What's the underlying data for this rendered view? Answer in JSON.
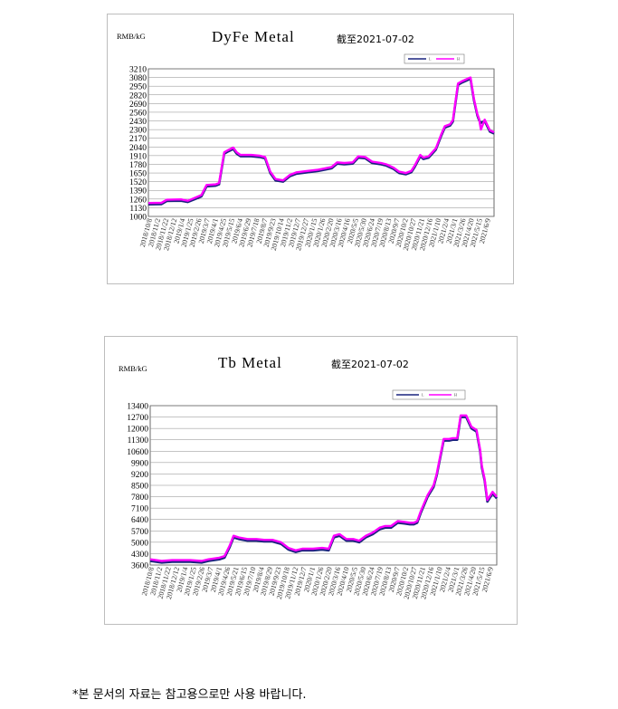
{
  "footer": {
    "note": "*본 문서의 자료는 참고용으로만 사용 바랍니다."
  },
  "chart_data": [
    {
      "type": "line",
      "title": "DyFe Metal",
      "date_note": "截至2021-07-02",
      "unit": "RMB/kG",
      "legend": [
        "L",
        "H"
      ],
      "legend_colors": [
        "#1a237e",
        "#ff00ff"
      ],
      "yticks": [
        1000,
        1130,
        1260,
        1390,
        1520,
        1650,
        1780,
        1910,
        2040,
        2170,
        2300,
        2430,
        2560,
        2690,
        2820,
        2950,
        3080,
        3210
      ],
      "ylim": [
        1000,
        3210
      ],
      "xlim": [
        "2018/10/8",
        "2021/7/2"
      ],
      "xticks": [
        "2018/10/8",
        "2018/11/2",
        "2018/11/22",
        "2018/12/12",
        "2019/1/4",
        "2019/1/25",
        "2019/2/26",
        "2019/3/7",
        "2019/4/1",
        "2019/4/25",
        "2019/5/15",
        "2019/6/4",
        "2019/6/29",
        "2019/7/18",
        "2019/8/7",
        "2019/9/23",
        "2019/10/14",
        "2019/11/2",
        "2019/12/7",
        "2019/12/27",
        "2020/1/15",
        "2020/1/26",
        "2020/2/20",
        "2020/3/16",
        "2020/4/16",
        "2020/5/5",
        "2020/5/30",
        "2020/6/24",
        "2020/7/19",
        "2020/8/13",
        "2020/9/7",
        "2020/10/2",
        "2020/10/27",
        "2020/11/21",
        "2020/12/16",
        "2021/1/10",
        "2021/2/4",
        "2021/3/1",
        "2021/3/26",
        "2021/4/20",
        "2021/5/15",
        "2021/6/9"
      ],
      "series": [
        {
          "name": "L",
          "color": "#1a237e",
          "x": [
            "2018/10/8",
            "2018/11/15",
            "2018/11/30",
            "2019/1/10",
            "2019/1/30",
            "2019/2/20",
            "2019/3/10",
            "2019/3/25",
            "2019/4/20",
            "2019/4/30",
            "2019/5/15",
            "2019/5/25",
            "2019/6/10",
            "2019/6/20",
            "2019/7/1",
            "2019/8/1",
            "2019/8/25",
            "2019/9/10",
            "2019/9/25",
            "2019/10/10",
            "2019/11/1",
            "2019/11/20",
            "2019/12/10",
            "2020/1/10",
            "2020/2/10",
            "2020/3/1",
            "2020/3/20",
            "2020/4/5",
            "2020/4/25",
            "2020/5/20",
            "2020/6/5",
            "2020/6/25",
            "2020/7/15",
            "2020/8/10",
            "2020/8/25",
            "2020/9/15",
            "2020/10/1",
            "2020/10/20",
            "2020/11/5",
            "2020/11/15",
            "2020/12/1",
            "2020/12/10",
            "2020/12/25",
            "2021/1/15",
            "2021/1/30",
            "2021/2/10",
            "2021/2/25",
            "2021/3/5",
            "2021/3/20",
            "2021/3/30",
            "2021/4/20",
            "2021/4/25",
            "2021/5/5",
            "2021/5/15",
            "2021/5/20",
            "2021/5/25",
            "2021/6/5",
            "2021/6/20",
            "2021/7/2"
          ],
          "y": [
            1180,
            1185,
            1230,
            1235,
            1215,
            1260,
            1300,
            1450,
            1460,
            1480,
            1940,
            1970,
            2010,
            1940,
            1900,
            1900,
            1890,
            1870,
            1650,
            1540,
            1520,
            1600,
            1640,
            1660,
            1680,
            1700,
            1720,
            1790,
            1780,
            1790,
            1880,
            1870,
            1800,
            1780,
            1760,
            1710,
            1650,
            1630,
            1660,
            1740,
            1900,
            1860,
            1880,
            2000,
            2200,
            2330,
            2360,
            2420,
            2970,
            3000,
            3050,
            3060,
            2740,
            2510,
            2440,
            2400,
            2430,
            2270,
            2240
          ]
        },
        {
          "name": "H",
          "color": "#ff00ff",
          "x": [
            "2018/10/8",
            "2018/11/15",
            "2018/11/30",
            "2019/1/10",
            "2019/1/30",
            "2019/2/20",
            "2019/3/10",
            "2019/3/25",
            "2019/4/20",
            "2019/4/30",
            "2019/5/15",
            "2019/5/25",
            "2019/6/10",
            "2019/6/20",
            "2019/7/1",
            "2019/8/1",
            "2019/8/25",
            "2019/9/10",
            "2019/9/25",
            "2019/10/10",
            "2019/11/1",
            "2019/11/20",
            "2019/12/10",
            "2020/1/10",
            "2020/2/10",
            "2020/3/1",
            "2020/3/20",
            "2020/4/5",
            "2020/4/25",
            "2020/5/20",
            "2020/6/5",
            "2020/6/25",
            "2020/7/15",
            "2020/8/10",
            "2020/8/25",
            "2020/9/15",
            "2020/10/1",
            "2020/10/20",
            "2020/11/5",
            "2020/11/15",
            "2020/12/1",
            "2020/12/10",
            "2020/12/25",
            "2021/1/15",
            "2021/1/30",
            "2021/2/10",
            "2021/2/25",
            "2021/3/5",
            "2021/3/20",
            "2021/3/30",
            "2021/4/20",
            "2021/4/25",
            "2021/5/5",
            "2021/5/15",
            "2021/5/20",
            "2021/5/25",
            "2021/6/5",
            "2021/6/20",
            "2021/7/2"
          ],
          "y": [
            1200,
            1205,
            1250,
            1255,
            1235,
            1280,
            1320,
            1470,
            1480,
            1500,
            1960,
            1990,
            2030,
            1960,
            1920,
            1920,
            1910,
            1890,
            1670,
            1560,
            1540,
            1620,
            1660,
            1680,
            1700,
            1720,
            1740,
            1810,
            1800,
            1810,
            1900,
            1890,
            1820,
            1800,
            1780,
            1730,
            1670,
            1650,
            1680,
            1760,
            1920,
            1880,
            1900,
            2020,
            2220,
            2350,
            2380,
            2440,
            2990,
            3020,
            3070,
            3080,
            2760,
            2530,
            2460,
            2300,
            2450,
            2290,
            2260
          ]
        }
      ]
    },
    {
      "type": "line",
      "title": "Tb Metal",
      "date_note": "截至2021-07-02",
      "unit": "RMB/kG",
      "legend": [
        "L",
        "H"
      ],
      "legend_colors": [
        "#1a237e",
        "#ff00ff"
      ],
      "yticks": [
        3600,
        4300,
        5000,
        5700,
        6400,
        7100,
        7800,
        8500,
        9200,
        9900,
        10600,
        11300,
        12000,
        12700,
        13400
      ],
      "ylim": [
        3600,
        13400
      ],
      "xlim": [
        "2018/10/8",
        "2021/7/2"
      ],
      "xticks": [
        "2018/10/8",
        "2018/11/2",
        "2018/11/22",
        "2018/12/12",
        "2019/1/4",
        "2019/1/25",
        "2019/2/26",
        "2019/3/7",
        "2019/4/1",
        "2019/4/26",
        "2019/5/21",
        "2019/6/15",
        "2019/7/10",
        "2019/8/4",
        "2019/8/29",
        "2019/9/23",
        "2019/10/18",
        "2019/11/12",
        "2019/12/7",
        "2020/1/1",
        "2020/1/26",
        "2020/2/20",
        "2020/3/16",
        "2020/4/10",
        "2020/5/5",
        "2020/5/30",
        "2020/6/24",
        "2020/7/19",
        "2020/8/13",
        "2020/9/7",
        "2020/10/2",
        "2020/10/27",
        "2020/11/21",
        "2020/12/16",
        "2021/1/10",
        "2021/2/4",
        "2021/3/1",
        "2021/3/26",
        "2021/4/20",
        "2021/5/15",
        "2021/6/9"
      ],
      "series": [
        {
          "name": "L",
          "color": "#1a237e",
          "x": [
            "2018/10/8",
            "2018/11/10",
            "2018/12/10",
            "2019/2/1",
            "2019/3/5",
            "2019/3/25",
            "2019/4/25",
            "2019/5/10",
            "2019/5/25",
            "2019/6/5",
            "2019/6/20",
            "2019/7/15",
            "2019/8/10",
            "2019/9/1",
            "2019/9/25",
            "2019/10/20",
            "2019/11/10",
            "2019/12/1",
            "2019/12/20",
            "2020/1/20",
            "2020/2/15",
            "2020/3/5",
            "2020/3/20",
            "2020/4/5",
            "2020/4/25",
            "2020/5/15",
            "2020/6/1",
            "2020/6/20",
            "2020/7/10",
            "2020/7/30",
            "2020/8/15",
            "2020/9/1",
            "2020/9/20",
            "2020/10/10",
            "2020/10/25",
            "2020/11/5",
            "2020/11/15",
            "2020/11/25",
            "2020/12/15",
            "2021/1/1",
            "2021/1/10",
            "2021/1/30",
            "2021/2/15",
            "2021/2/25",
            "2021/3/10",
            "2021/3/20",
            "2021/4/5",
            "2021/4/20",
            "2021/5/5",
            "2021/5/15",
            "2021/5/20",
            "2021/5/28",
            "2021/6/5",
            "2021/6/20",
            "2021/7/2"
          ],
          "y": [
            3850,
            3750,
            3800,
            3800,
            3750,
            3850,
            3950,
            4050,
            4700,
            5300,
            5200,
            5100,
            5100,
            5050,
            5050,
            4900,
            4550,
            4400,
            4500,
            4500,
            4550,
            4500,
            5300,
            5400,
            5100,
            5100,
            5000,
            5300,
            5500,
            5800,
            5900,
            5900,
            6200,
            6150,
            6100,
            6100,
            6200,
            6800,
            7800,
            8400,
            9100,
            11250,
            11250,
            11300,
            11300,
            12700,
            12700,
            12000,
            11800,
            10600,
            9600,
            8800,
            7500,
            8000,
            7700
          ]
        },
        {
          "name": "H",
          "color": "#ff00ff",
          "x": [
            "2018/10/8",
            "2018/11/10",
            "2018/12/10",
            "2019/2/1",
            "2019/3/5",
            "2019/3/25",
            "2019/4/25",
            "2019/5/10",
            "2019/5/25",
            "2019/6/5",
            "2019/6/20",
            "2019/7/15",
            "2019/8/10",
            "2019/9/1",
            "2019/9/25",
            "2019/10/20",
            "2019/11/10",
            "2019/12/1",
            "2019/12/20",
            "2020/1/20",
            "2020/2/15",
            "2020/3/5",
            "2020/3/20",
            "2020/4/5",
            "2020/4/25",
            "2020/5/15",
            "2020/6/1",
            "2020/6/20",
            "2020/7/10",
            "2020/7/30",
            "2020/8/15",
            "2020/9/1",
            "2020/9/20",
            "2020/10/10",
            "2020/10/25",
            "2020/11/5",
            "2020/11/15",
            "2020/11/25",
            "2020/12/15",
            "2021/1/1",
            "2021/1/10",
            "2021/1/30",
            "2021/2/15",
            "2021/2/25",
            "2021/3/10",
            "2021/3/20",
            "2021/4/5",
            "2021/4/20",
            "2021/5/5",
            "2021/5/15",
            "2021/5/20",
            "2021/5/28",
            "2021/6/5",
            "2021/6/20",
            "2021/7/2"
          ],
          "y": [
            3950,
            3850,
            3900,
            3900,
            3850,
            3950,
            4050,
            4150,
            4800,
            5400,
            5300,
            5200,
            5200,
            5150,
            5150,
            5000,
            4650,
            4500,
            4600,
            4600,
            4650,
            4600,
            5400,
            5500,
            5200,
            5200,
            5100,
            5400,
            5600,
            5900,
            6000,
            6000,
            6300,
            6250,
            6200,
            6200,
            6300,
            6900,
            7900,
            8500,
            9200,
            11350,
            11350,
            11400,
            11400,
            12800,
            12800,
            12100,
            11900,
            10700,
            9700,
            8900,
            7600,
            8100,
            7800
          ]
        }
      ]
    }
  ]
}
